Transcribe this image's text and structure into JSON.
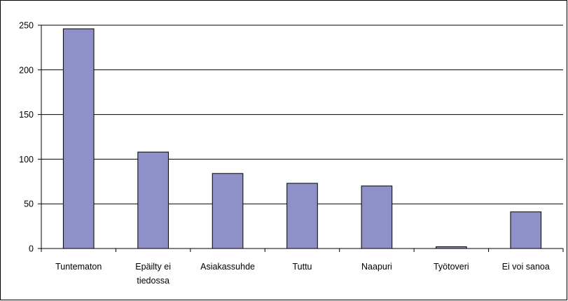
{
  "chart_data": {
    "type": "bar",
    "categories": [
      "Tuntematon",
      "Epäilty ei tiedossa",
      "Asiakassuhde",
      "Tuttu",
      "Naapuri",
      "Työtoveri",
      "Ei voi sanoa"
    ],
    "values": [
      246,
      108,
      84,
      73,
      70,
      2,
      41
    ],
    "color": "#8f90c8",
    "ylim": [
      0,
      250
    ],
    "yticks": [
      0,
      50,
      100,
      150,
      200,
      250
    ],
    "grid": true
  }
}
